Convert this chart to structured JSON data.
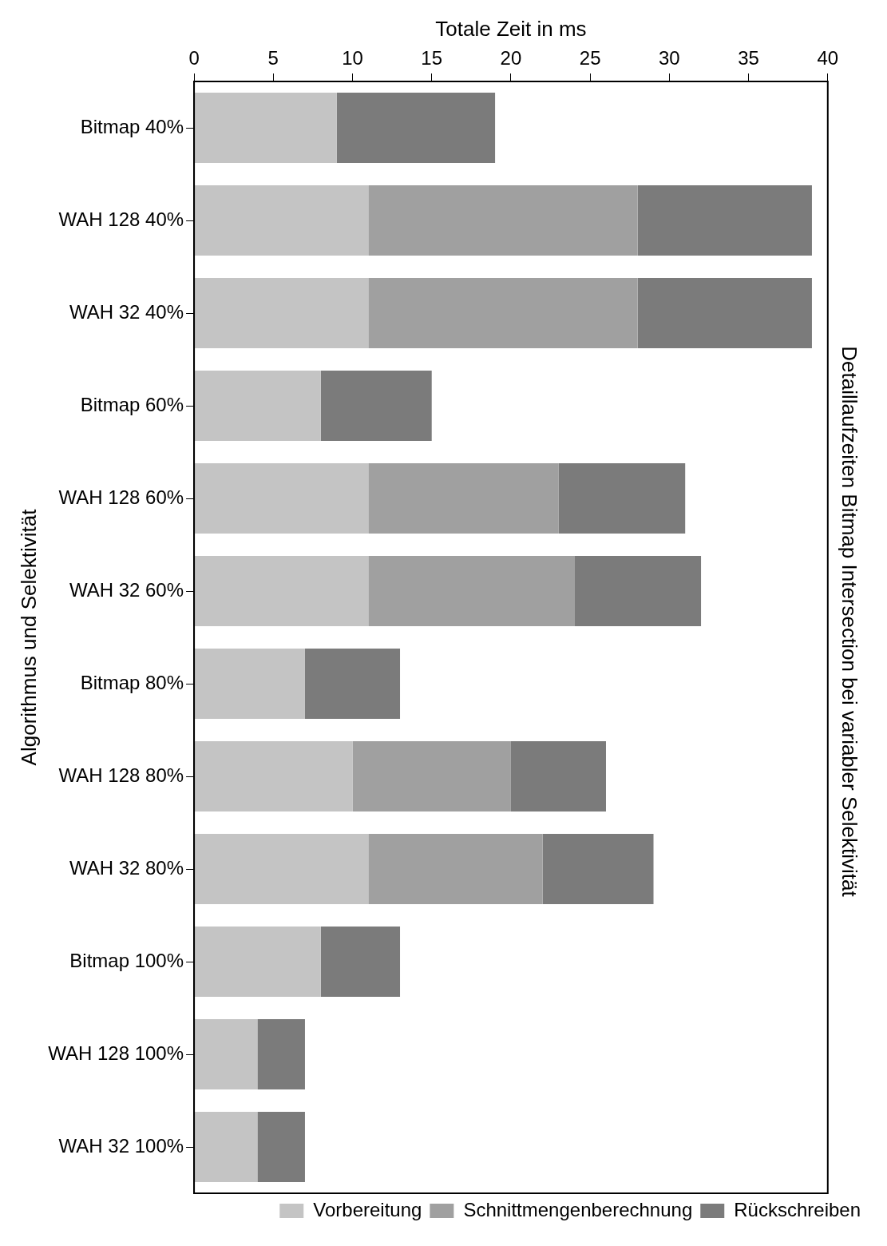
{
  "chart_data": {
    "type": "bar",
    "orientation": "horizontal",
    "stacked": true,
    "title": "Detaillaufzeiten Bitmap Intersection bei variabler Selektivität",
    "xlabel": "Totale Zeit in ms",
    "ylabel": "Algorithmus und Selektivität",
    "categories": [
      "Bitmap 40%",
      "WAH 128 40%",
      "WAH 32 40%",
      "Bitmap 60%",
      "WAH 128 60%",
      "WAH 32 60%",
      "Bitmap 80%",
      "WAH 128 80%",
      "WAH 32 80%",
      "Bitmap 100%",
      "WAH 128 100%",
      "WAH 32 100%"
    ],
    "series": [
      {
        "name": "Vorbereitung",
        "color": "#c4c4c4",
        "values": [
          9,
          11,
          11,
          8,
          11,
          11,
          7,
          10,
          11,
          8,
          4,
          4
        ]
      },
      {
        "name": "Schnittmengenberechnung",
        "color": "#a0a0a0",
        "values": [
          0,
          17,
          17,
          0,
          12,
          13,
          0,
          10,
          11,
          0,
          0,
          0
        ]
      },
      {
        "name": "Rückschreiben",
        "color": "#7b7b7b",
        "values": [
          10,
          11,
          11,
          7,
          8,
          8,
          6,
          6,
          7,
          5,
          3,
          3
        ]
      }
    ],
    "xlim": [
      0,
      40
    ],
    "xticks": [
      0,
      5,
      10,
      15,
      20,
      25,
      30,
      35,
      40
    ],
    "grid": false,
    "legend": "bottom right"
  }
}
